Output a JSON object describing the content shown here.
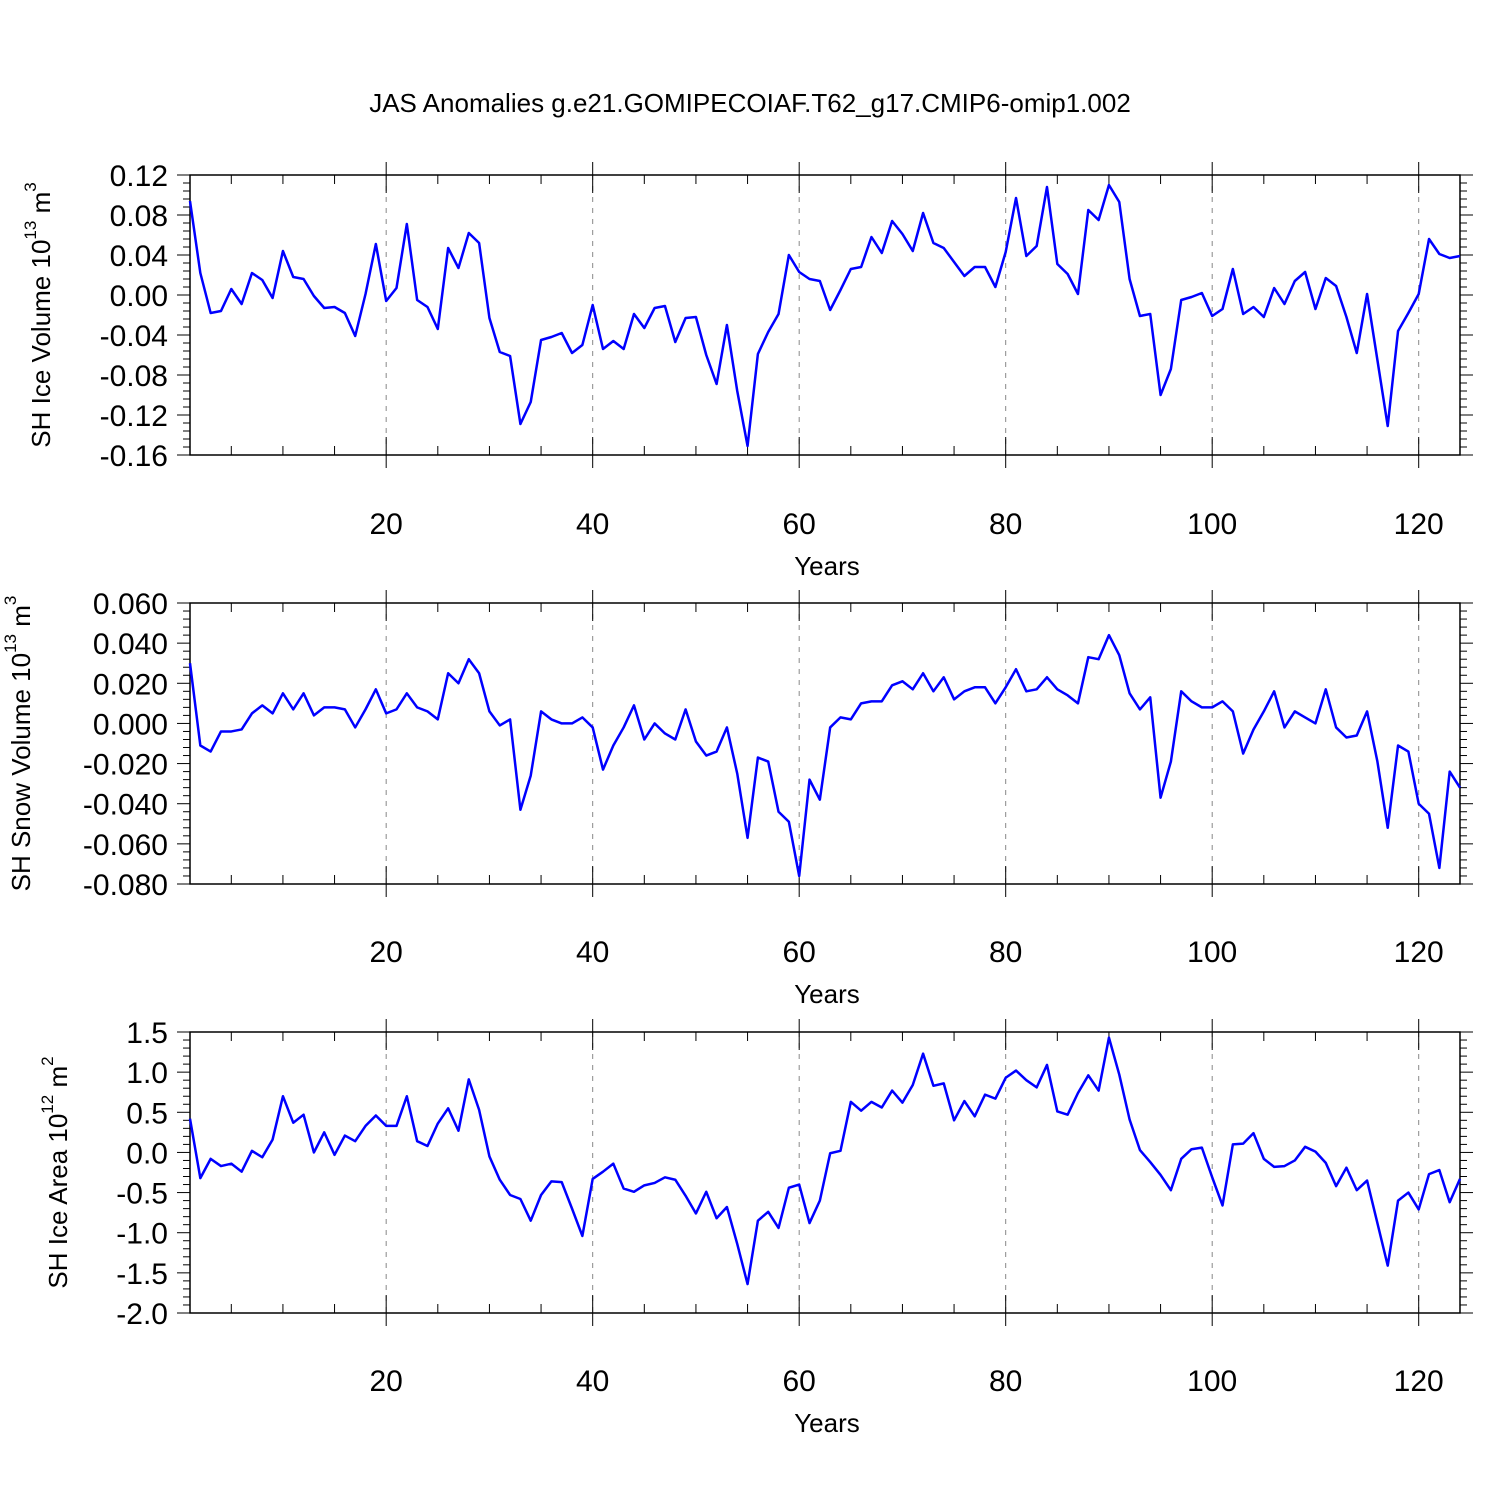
{
  "title": "JAS Anomalies g.e21.GOMIPECOIAF.T62_g17.CMIP6-omip1.002",
  "colors": {
    "line": "#0000ff",
    "axis": "#000000",
    "grid": "#888888"
  },
  "chart_data": [
    {
      "type": "line",
      "ylabel": {
        "base": "SH Ice Volume 10",
        "exp1": "13",
        "mid": " m",
        "exp2": "3"
      },
      "xlabel": "Years",
      "xlim": [
        1,
        124
      ],
      "ylim": [
        -0.16,
        0.12
      ],
      "xticks": [
        20,
        40,
        60,
        80,
        100,
        120
      ],
      "yticks": [
        -0.16,
        -0.12,
        -0.08,
        -0.04,
        0.0,
        0.04,
        0.08,
        0.12
      ],
      "ytick_labels": [
        "-0.16",
        "-0.12",
        "-0.08",
        "-0.04",
        "0.00",
        "0.04",
        "0.08",
        "0.12"
      ],
      "x_start": 1,
      "grid": "vertical dashed",
      "values": [
        0.094,
        0.022,
        -0.018,
        -0.016,
        0.006,
        -0.009,
        0.022,
        0.015,
        -0.003,
        0.044,
        0.018,
        0.016,
        -0.001,
        -0.013,
        -0.012,
        -0.018,
        -0.041,
        0.001,
        0.051,
        -0.006,
        0.007,
        0.071,
        -0.005,
        -0.012,
        -0.034,
        0.047,
        0.027,
        0.062,
        0.052,
        -0.023,
        -0.057,
        -0.061,
        -0.129,
        -0.107,
        -0.045,
        -0.042,
        -0.038,
        -0.058,
        -0.05,
        -0.01,
        -0.054,
        -0.046,
        -0.054,
        -0.019,
        -0.033,
        -0.013,
        -0.011,
        -0.047,
        -0.023,
        -0.022,
        -0.06,
        -0.089,
        -0.03,
        -0.096,
        -0.151,
        -0.059,
        -0.037,
        -0.019,
        0.04,
        0.023,
        0.016,
        0.014,
        -0.015,
        0.005,
        0.026,
        0.028,
        0.058,
        0.042,
        0.074,
        0.061,
        0.044,
        0.082,
        0.052,
        0.047,
        0.033,
        0.019,
        0.028,
        0.028,
        0.008,
        0.043,
        0.097,
        0.039,
        0.049,
        0.108,
        0.031,
        0.021,
        0.001,
        0.085,
        0.075,
        0.11,
        0.093,
        0.016,
        -0.021,
        -0.019,
        -0.1,
        -0.074,
        -0.005,
        -0.002,
        0.002,
        -0.021,
        -0.014,
        0.026,
        -0.019,
        -0.012,
        -0.022,
        0.007,
        -0.009,
        0.014,
        0.023,
        -0.014,
        0.017,
        0.009,
        -0.022,
        -0.058,
        0.001,
        -0.065,
        -0.131,
        -0.036,
        -0.018,
        0.001,
        0.056,
        0.041,
        0.037,
        0.039
      ]
    },
    {
      "type": "line",
      "ylabel": {
        "base": "SH Snow Volume 10",
        "exp1": "13",
        "mid": " m",
        "exp2": "3"
      },
      "xlabel": "Years",
      "xlim": [
        1,
        124
      ],
      "ylim": [
        -0.08,
        0.06
      ],
      "xticks": [
        20,
        40,
        60,
        80,
        100,
        120
      ],
      "yticks": [
        -0.08,
        -0.06,
        -0.04,
        -0.02,
        0.0,
        0.02,
        0.04,
        0.06
      ],
      "ytick_labels": [
        "-0.080",
        "-0.060",
        "-0.040",
        "-0.020",
        "0.000",
        "0.020",
        "0.040",
        "0.060"
      ],
      "x_start": 1,
      "grid": "vertical dashed",
      "values": [
        0.03,
        -0.011,
        -0.014,
        -0.004,
        -0.004,
        -0.003,
        0.005,
        0.009,
        0.005,
        0.015,
        0.007,
        0.015,
        0.004,
        0.008,
        0.008,
        0.007,
        -0.002,
        0.007,
        0.017,
        0.005,
        0.007,
        0.015,
        0.008,
        0.006,
        0.002,
        0.025,
        0.02,
        0.032,
        0.025,
        0.006,
        -0.001,
        0.002,
        -0.043,
        -0.026,
        0.006,
        0.002,
        0.0,
        0.0,
        0.003,
        -0.002,
        -0.023,
        -0.011,
        -0.002,
        0.009,
        -0.008,
        0.0,
        -0.005,
        -0.008,
        0.007,
        -0.009,
        -0.016,
        -0.014,
        -0.002,
        -0.025,
        -0.057,
        -0.017,
        -0.019,
        -0.044,
        -0.049,
        -0.076,
        -0.028,
        -0.038,
        -0.002,
        0.003,
        0.002,
        0.01,
        0.011,
        0.011,
        0.019,
        0.021,
        0.017,
        0.025,
        0.016,
        0.023,
        0.012,
        0.016,
        0.018,
        0.018,
        0.01,
        0.018,
        0.027,
        0.016,
        0.017,
        0.023,
        0.017,
        0.014,
        0.01,
        0.033,
        0.032,
        0.044,
        0.034,
        0.015,
        0.007,
        0.013,
        -0.037,
        -0.019,
        0.016,
        0.011,
        0.008,
        0.008,
        0.011,
        0.006,
        -0.015,
        -0.003,
        0.006,
        0.016,
        -0.002,
        0.006,
        0.003,
        0.0,
        0.017,
        -0.002,
        -0.007,
        -0.006,
        0.006,
        -0.019,
        -0.052,
        -0.011,
        -0.014,
        -0.04,
        -0.045,
        -0.072,
        -0.024,
        -0.032
      ]
    },
    {
      "type": "line",
      "ylabel": {
        "base": "SH Ice Area 10",
        "exp1": "12",
        "mid": " m",
        "exp2": "2"
      },
      "xlabel": "Years",
      "xlim": [
        1,
        124
      ],
      "ylim": [
        -2.0,
        1.5
      ],
      "xticks": [
        20,
        40,
        60,
        80,
        100,
        120
      ],
      "yticks": [
        -2.0,
        -1.5,
        -1.0,
        -0.5,
        0.0,
        0.5,
        1.0,
        1.5
      ],
      "ytick_labels": [
        "-2.0",
        "-1.5",
        "-1.0",
        "-0.5",
        "0.0",
        "0.5",
        "1.0",
        "1.5"
      ],
      "x_start": 1,
      "grid": "vertical dashed",
      "values": [
        0.42,
        -0.32,
        -0.08,
        -0.17,
        -0.14,
        -0.24,
        0.02,
        -0.06,
        0.16,
        0.7,
        0.37,
        0.47,
        0.0,
        0.25,
        -0.03,
        0.21,
        0.14,
        0.33,
        0.46,
        0.33,
        0.33,
        0.7,
        0.14,
        0.08,
        0.36,
        0.55,
        0.27,
        0.91,
        0.53,
        -0.05,
        -0.34,
        -0.53,
        -0.58,
        -0.85,
        -0.53,
        -0.36,
        -0.37,
        -0.7,
        -1.04,
        -0.33,
        -0.24,
        -0.14,
        -0.45,
        -0.49,
        -0.41,
        -0.38,
        -0.31,
        -0.34,
        -0.54,
        -0.76,
        -0.49,
        -0.82,
        -0.68,
        -1.14,
        -1.64,
        -0.85,
        -0.74,
        -0.94,
        -0.44,
        -0.4,
        -0.88,
        -0.6,
        -0.01,
        0.02,
        0.63,
        0.52,
        0.63,
        0.56,
        0.77,
        0.62,
        0.84,
        1.23,
        0.83,
        0.86,
        0.4,
        0.64,
        0.45,
        0.72,
        0.67,
        0.93,
        1.02,
        0.9,
        0.81,
        1.09,
        0.51,
        0.47,
        0.74,
        0.96,
        0.77,
        1.43,
        0.97,
        0.41,
        0.03,
        -0.12,
        -0.28,
        -0.47,
        -0.08,
        0.04,
        0.06,
        -0.31,
        -0.66,
        0.1,
        0.11,
        0.24,
        -0.08,
        -0.18,
        -0.17,
        -0.1,
        0.07,
        0.01,
        -0.13,
        -0.42,
        -0.19,
        -0.47,
        -0.35,
        -0.88,
        -1.41,
        -0.6,
        -0.5,
        -0.71,
        -0.27,
        -0.22,
        -0.62,
        -0.33
      ]
    }
  ]
}
